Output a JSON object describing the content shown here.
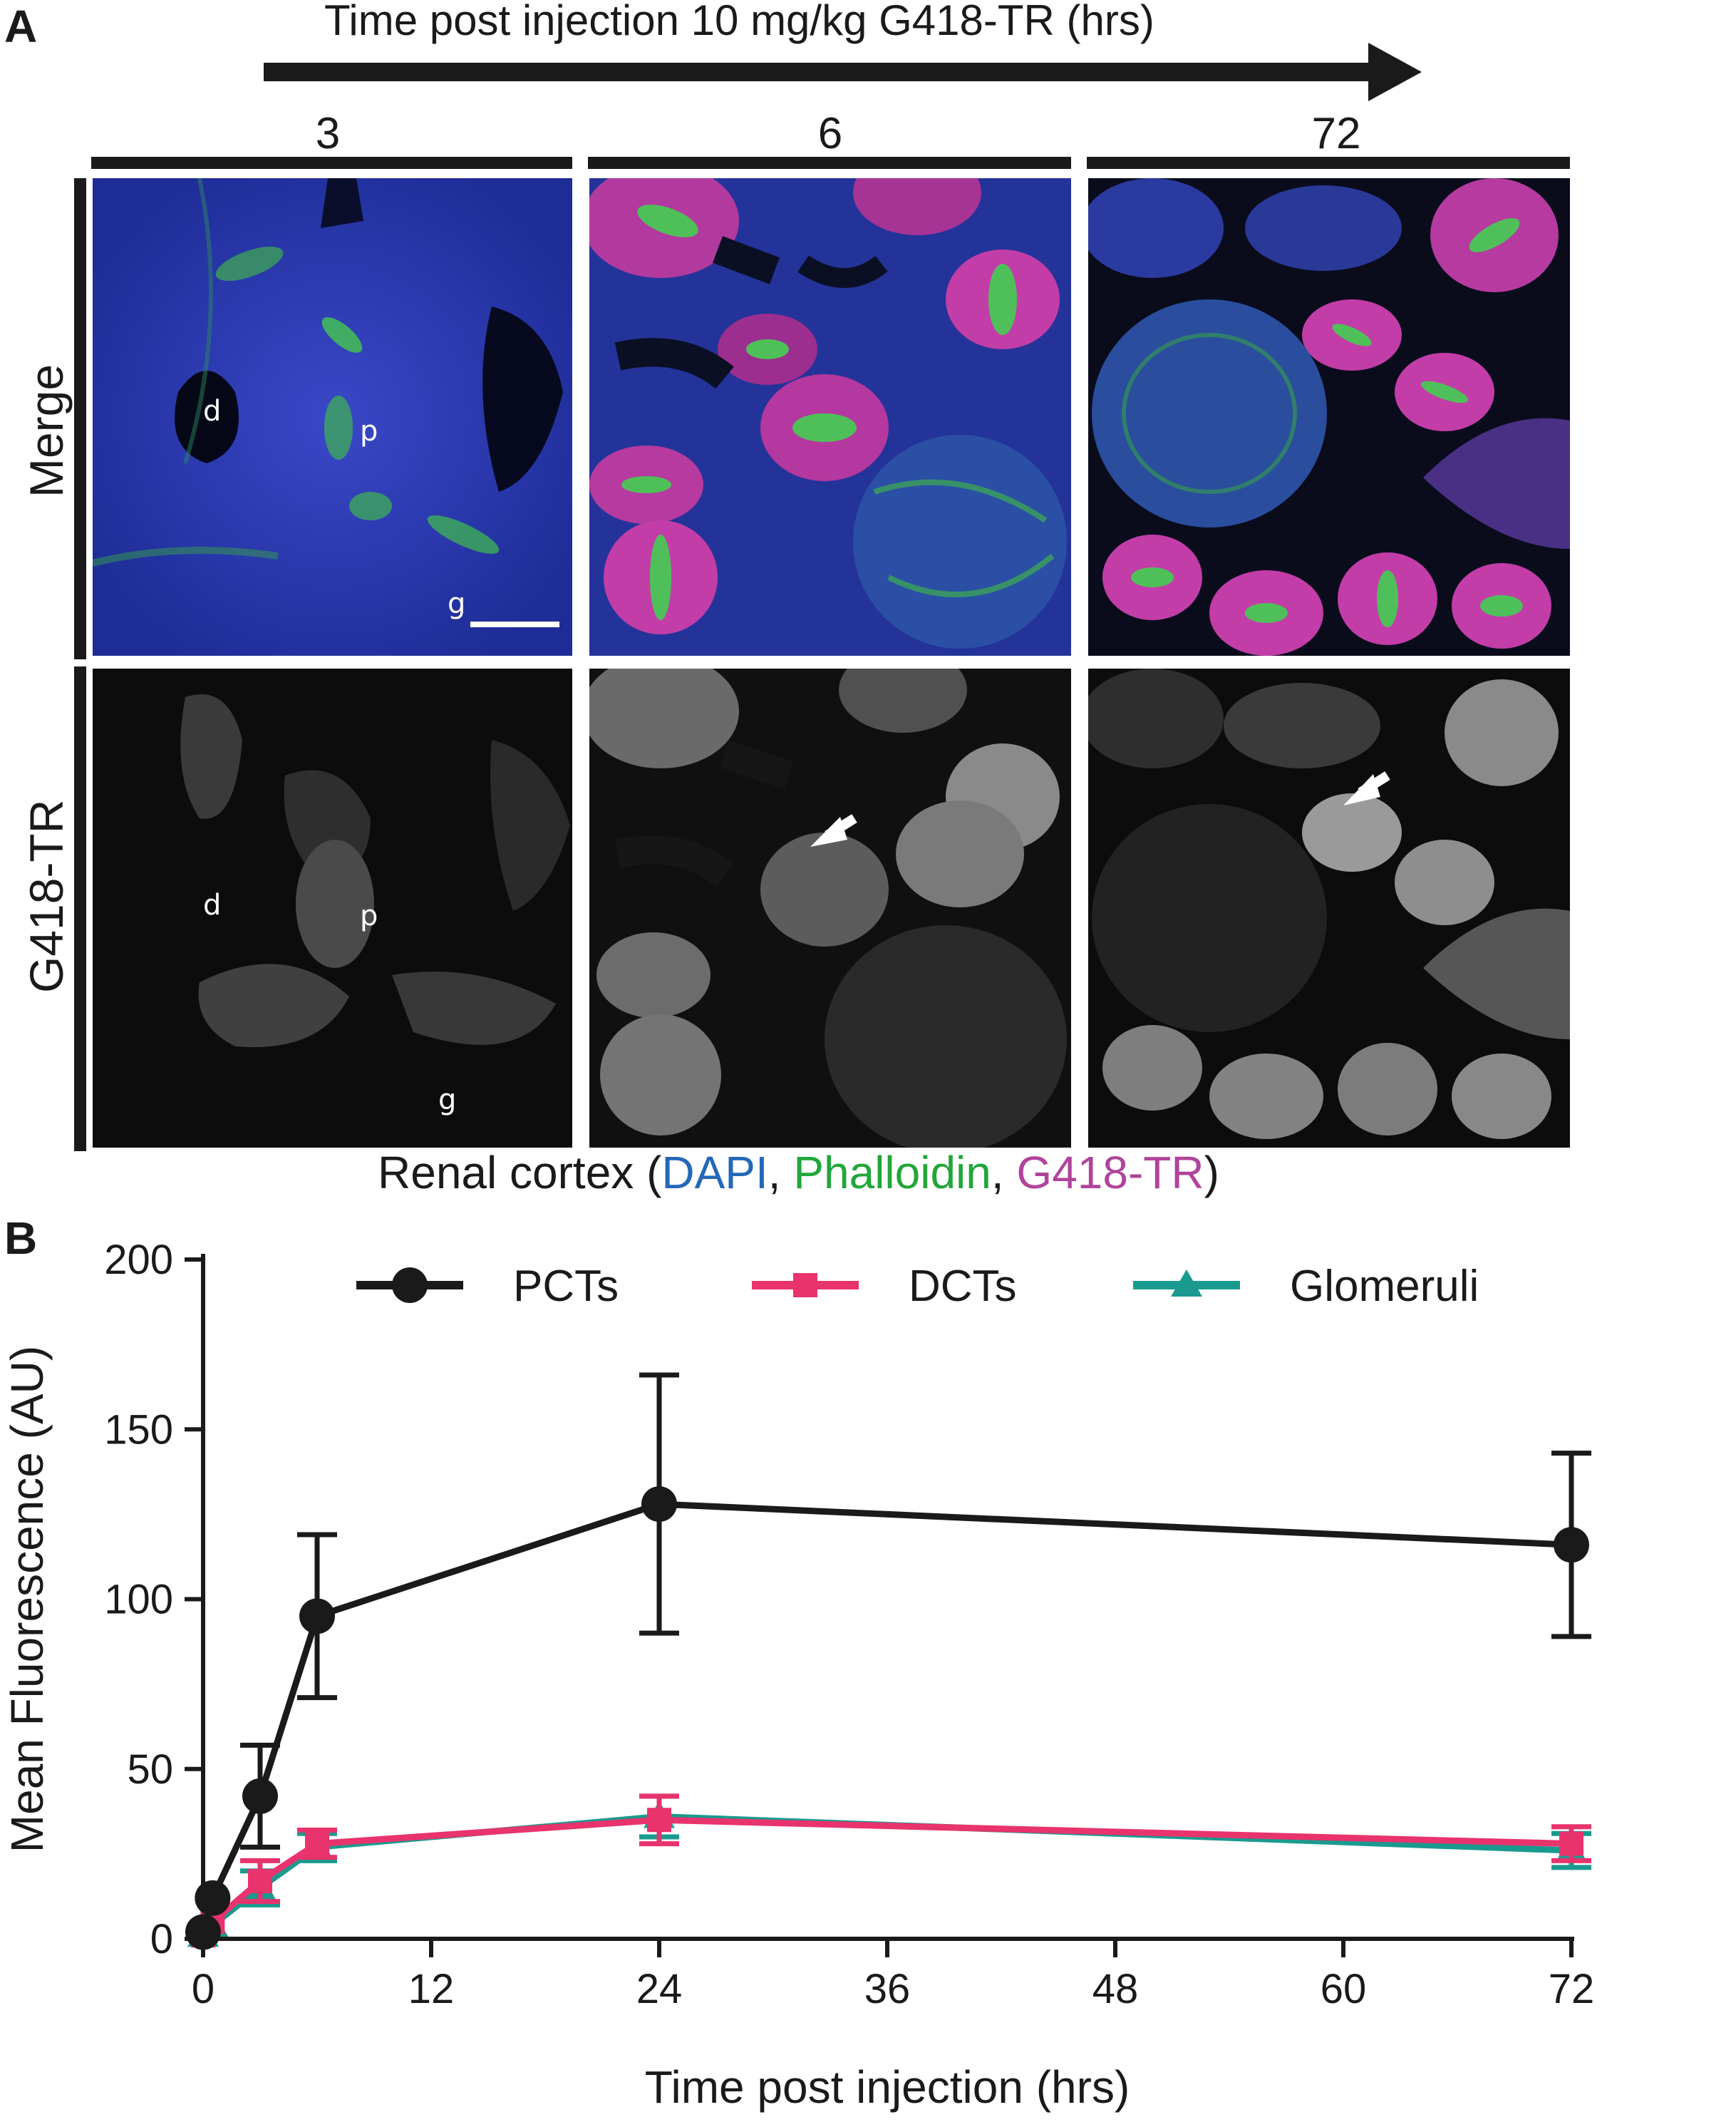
{
  "panel_a": {
    "letter": "A",
    "arrow_title": "Time post injection 10 mg/kg G418-TR (hrs)",
    "time_points": [
      "3",
      "6",
      "72"
    ],
    "row_labels": [
      "Merge",
      "G418-TR"
    ],
    "cell_labels": {
      "distal": "d",
      "proximal": "p",
      "glomerulus": "g"
    },
    "caption": {
      "prefix": "Renal cortex (",
      "dapi": "DAPI",
      "sep1": ", ",
      "phalloidin": "Phalloidin",
      "sep2": ", ",
      "g418": "G418-TR",
      "suffix": ")"
    },
    "colors": {
      "dapi": "#2468b8",
      "phalloidin": "#22a63a",
      "g418": "#b0449b"
    }
  },
  "panel_b": {
    "letter": "B"
  },
  "chart_data": {
    "type": "line",
    "xlabel": "Time post injection (hrs)",
    "ylabel": "Mean Fluorescence (AU)",
    "xlim": [
      0,
      72
    ],
    "ylim": [
      0,
      200
    ],
    "xticks": [
      0,
      12,
      24,
      36,
      48,
      60,
      72
    ],
    "yticks": [
      0,
      50,
      100,
      150,
      200
    ],
    "legend_position": "top",
    "grid": false,
    "series": [
      {
        "name": "PCTs",
        "color": "#1a1a1a",
        "marker": "circle",
        "x": [
          0,
          0.5,
          3,
          6,
          24,
          72
        ],
        "y": [
          2,
          12,
          42,
          95,
          128,
          116
        ],
        "err": [
          0,
          0,
          15,
          24,
          38,
          27
        ]
      },
      {
        "name": "DCTs",
        "color": "#e8336d",
        "marker": "square",
        "x": [
          0,
          0.5,
          3,
          6,
          24,
          72
        ],
        "y": [
          1,
          5,
          17,
          28,
          35,
          28
        ],
        "err": [
          0,
          0,
          6,
          4,
          7,
          5
        ]
      },
      {
        "name": "Glomeruli",
        "color": "#1a9a8f",
        "marker": "triangle",
        "x": [
          0,
          0.5,
          3,
          6,
          24,
          72
        ],
        "y": [
          1,
          4,
          15,
          27,
          36,
          26
        ],
        "err": [
          0,
          0,
          5,
          4,
          6,
          5
        ]
      }
    ]
  }
}
